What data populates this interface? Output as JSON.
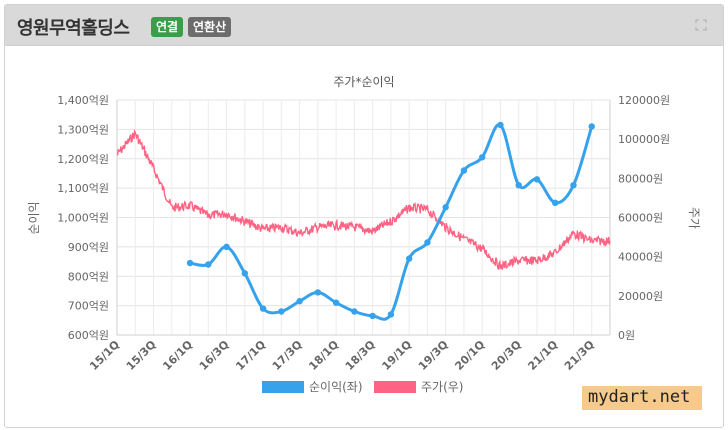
{
  "header": {
    "title": "영원무역홀딩스",
    "badge_consolidated": "연결",
    "badge_annualized": "연환산"
  },
  "watermark": "mydart.net",
  "colors": {
    "profit": "#36a2eb",
    "price": "#ff6384",
    "grid": "#e4e4e4",
    "badge_green": "#3a9d4a",
    "badge_gray": "#6c6c6c"
  },
  "chart_data": {
    "type": "line",
    "title": "주가*순이익",
    "y_left_label": "순이익",
    "y_right_label": "주가",
    "y_left_range": [
      600,
      1400
    ],
    "y_left_ticks": [
      "1,400억원",
      "1,300억원",
      "1,200억원",
      "1,100억원",
      "1,000억원",
      "900억원",
      "800억원",
      "700억원",
      "600억원"
    ],
    "y_right_range": [
      0,
      120000
    ],
    "y_right_ticks": [
      "120000원",
      "100000원",
      "80000원",
      "60000원",
      "40000원",
      "20000원",
      "0원"
    ],
    "x_categories": [
      "15/1Q",
      "15/2Q",
      "15/3Q",
      "15/4Q",
      "16/1Q",
      "16/2Q",
      "16/3Q",
      "16/4Q",
      "17/1Q",
      "17/2Q",
      "17/3Q",
      "17/4Q",
      "18/1Q",
      "18/2Q",
      "18/3Q",
      "18/4Q",
      "19/1Q",
      "19/2Q",
      "19/3Q",
      "19/4Q",
      "20/1Q",
      "20/2Q",
      "20/3Q",
      "20/4Q",
      "21/1Q",
      "21/2Q",
      "21/3Q",
      "21/4Q"
    ],
    "x_tick_labels": [
      "15/1Q",
      "15/3Q",
      "16/1Q",
      "16/3Q",
      "17/1Q",
      "17/3Q",
      "18/1Q",
      "18/3Q",
      "19/1Q",
      "19/3Q",
      "20/1Q",
      "20/3Q",
      "21/1Q",
      "21/3Q"
    ],
    "grid": true,
    "legend_position": "bottom",
    "series": [
      {
        "name": "순이익(좌)",
        "axis": "left",
        "points": [
          {
            "x": "16/1Q",
            "y": 845
          },
          {
            "x": "16/2Q",
            "y": 840
          },
          {
            "x": "16/3Q",
            "y": 900
          },
          {
            "x": "16/4Q",
            "y": 810
          },
          {
            "x": "17/1Q",
            "y": 690
          },
          {
            "x": "17/2Q",
            "y": 680
          },
          {
            "x": "17/3Q",
            "y": 715
          },
          {
            "x": "17/4Q",
            "y": 745
          },
          {
            "x": "18/1Q",
            "y": 710
          },
          {
            "x": "18/2Q",
            "y": 680
          },
          {
            "x": "18/3Q",
            "y": 665
          },
          {
            "x": "18/4Q",
            "y": 670
          },
          {
            "x": "19/1Q",
            "y": 860
          },
          {
            "x": "19/2Q",
            "y": 915
          },
          {
            "x": "19/3Q",
            "y": 1035
          },
          {
            "x": "19/4Q",
            "y": 1160
          },
          {
            "x": "20/1Q",
            "y": 1205
          },
          {
            "x": "20/2Q",
            "y": 1315
          },
          {
            "x": "20/3Q",
            "y": 1110
          },
          {
            "x": "20/4Q",
            "y": 1130
          },
          {
            "x": "21/1Q",
            "y": 1050
          },
          {
            "x": "21/2Q",
            "y": 1110
          },
          {
            "x": "21/3Q",
            "y": 1310
          }
        ]
      },
      {
        "name": "주가(우)",
        "axis": "right",
        "points": [
          {
            "x": "15/1Q",
            "y": 92000
          },
          {
            "x": "15/2Q",
            "y": 103000
          },
          {
            "x": "15/3Q",
            "y": 85000
          },
          {
            "x": "15/4Q",
            "y": 65000
          },
          {
            "x": "16/1Q",
            "y": 66000
          },
          {
            "x": "16/2Q",
            "y": 61000
          },
          {
            "x": "16/3Q",
            "y": 62000
          },
          {
            "x": "16/4Q",
            "y": 58000
          },
          {
            "x": "17/1Q",
            "y": 54000
          },
          {
            "x": "17/2Q",
            "y": 55000
          },
          {
            "x": "17/3Q",
            "y": 52000
          },
          {
            "x": "17/4Q",
            "y": 55000
          },
          {
            "x": "18/1Q",
            "y": 56000
          },
          {
            "x": "18/2Q",
            "y": 55000
          },
          {
            "x": "18/3Q",
            "y": 53000
          },
          {
            "x": "18/4Q",
            "y": 58000
          },
          {
            "x": "19/1Q",
            "y": 65000
          },
          {
            "x": "19/2Q",
            "y": 64000
          },
          {
            "x": "19/3Q",
            "y": 55000
          },
          {
            "x": "19/4Q",
            "y": 49000
          },
          {
            "x": "20/1Q",
            "y": 44000
          },
          {
            "x": "20/2Q",
            "y": 35000
          },
          {
            "x": "20/3Q",
            "y": 38000
          },
          {
            "x": "20/4Q",
            "y": 38000
          },
          {
            "x": "21/1Q",
            "y": 42000
          },
          {
            "x": "21/2Q",
            "y": 52000
          },
          {
            "x": "21/3Q",
            "y": 48000
          },
          {
            "x": "21/4Q",
            "y": 48000
          }
        ]
      }
    ]
  }
}
